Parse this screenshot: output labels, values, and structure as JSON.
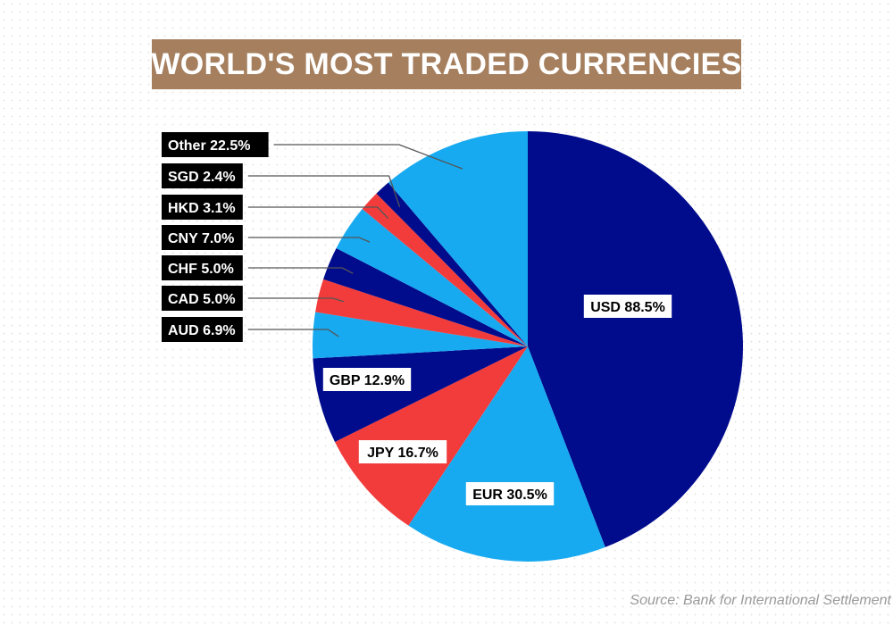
{
  "title": "WORLD'S MOST TRADED CURRENCIES",
  "source": "Source: Bank for International Settlement",
  "colors": {
    "title_bg": "#a57f5e",
    "navy": "#000c8c",
    "sky": "#18aaf0",
    "red": "#f23c3c",
    "label_dark": "#000000",
    "label_light": "#ffffff"
  },
  "chart_data": {
    "type": "pie",
    "title": "WORLD'S MOST TRADED CURRENCIES",
    "slices": [
      {
        "label": "USD 88.5%",
        "currency": "USD",
        "value": 88.5,
        "color": "#000c8c",
        "label_position": "inside"
      },
      {
        "label": "EUR 30.5%",
        "currency": "EUR",
        "value": 30.5,
        "color": "#18aaf0",
        "label_position": "inside"
      },
      {
        "label": "JPY 16.7%",
        "currency": "JPY",
        "value": 16.7,
        "color": "#f23c3c",
        "label_position": "inside"
      },
      {
        "label": "GBP 12.9%",
        "currency": "GBP",
        "value": 12.9,
        "color": "#000c8c",
        "label_position": "inside"
      },
      {
        "label": "AUD 6.9%",
        "currency": "AUD",
        "value": 6.9,
        "color": "#18aaf0",
        "label_position": "outside"
      },
      {
        "label": "CAD 5.0%",
        "currency": "CAD",
        "value": 5.0,
        "color": "#f23c3c",
        "label_position": "outside"
      },
      {
        "label": "CHF 5.0%",
        "currency": "CHF",
        "value": 5.0,
        "color": "#000c8c",
        "label_position": "outside"
      },
      {
        "label": "CNY 7.0%",
        "currency": "CNY",
        "value": 7.0,
        "color": "#18aaf0",
        "label_position": "outside"
      },
      {
        "label": "HKD 3.1%",
        "currency": "HKD",
        "value": 3.1,
        "color": "#f23c3c",
        "label_position": "outside"
      },
      {
        "label": "SGD 2.4%",
        "currency": "SGD",
        "value": 2.4,
        "color": "#000c8c",
        "label_position": "outside"
      },
      {
        "label": "Other 22.5%",
        "currency": "Other",
        "value": 22.5,
        "color": "#18aaf0",
        "label_position": "outside"
      }
    ],
    "legend": false,
    "grid": false
  }
}
